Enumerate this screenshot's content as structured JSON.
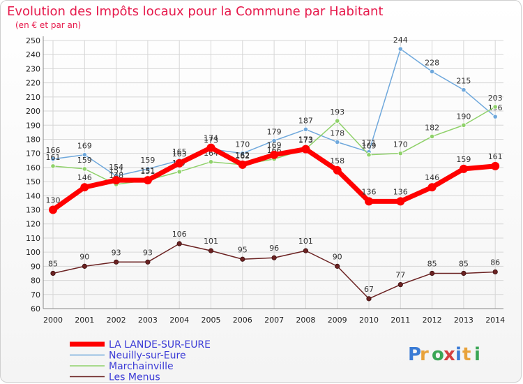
{
  "title": "Evolution des Impôts locaux pour la Commune par Habitant",
  "subtitle": "(en € et par an)",
  "watermark": "Proxiti",
  "chart_data": {
    "type": "line",
    "title": "Evolution des Impôts locaux pour la Commune par Habitant",
    "subtitle": "(en € et par an)",
    "x": [
      "2000",
      "2001",
      "2002",
      "2003",
      "2004",
      "2005",
      "2006",
      "2007",
      "2008",
      "2009",
      "2010",
      "2011",
      "2012",
      "2013",
      "2014"
    ],
    "ylim": [
      60,
      250
    ],
    "ytick_step": 10,
    "grid": true,
    "legend_position": "bottom-left",
    "series": [
      {
        "name": "LA LANDE-SUR-EURE",
        "color": "#ff0000",
        "values": [
          130,
          146,
          151,
          151,
          163,
          174,
          162,
          169,
          173,
          158,
          136,
          136,
          146,
          159,
          161
        ]
      },
      {
        "name": "Neuilly-sur-Eure",
        "color": "#6fa8dc",
        "values": [
          166,
          169,
          154,
          159,
          165,
          173,
          170,
          179,
          187,
          178,
          171,
          244,
          228,
          215,
          196
        ]
      },
      {
        "name": "Marchainville",
        "color": "#8fd16a",
        "values": [
          161,
          159,
          148,
          151,
          157,
          164,
          162,
          166,
          173,
          193,
          169,
          170,
          182,
          190,
          203
        ]
      },
      {
        "name": "Les Menus",
        "color": "#6b2222",
        "values": [
          85,
          90,
          93,
          93,
          106,
          101,
          95,
          96,
          101,
          90,
          67,
          77,
          85,
          85,
          86
        ]
      }
    ]
  }
}
